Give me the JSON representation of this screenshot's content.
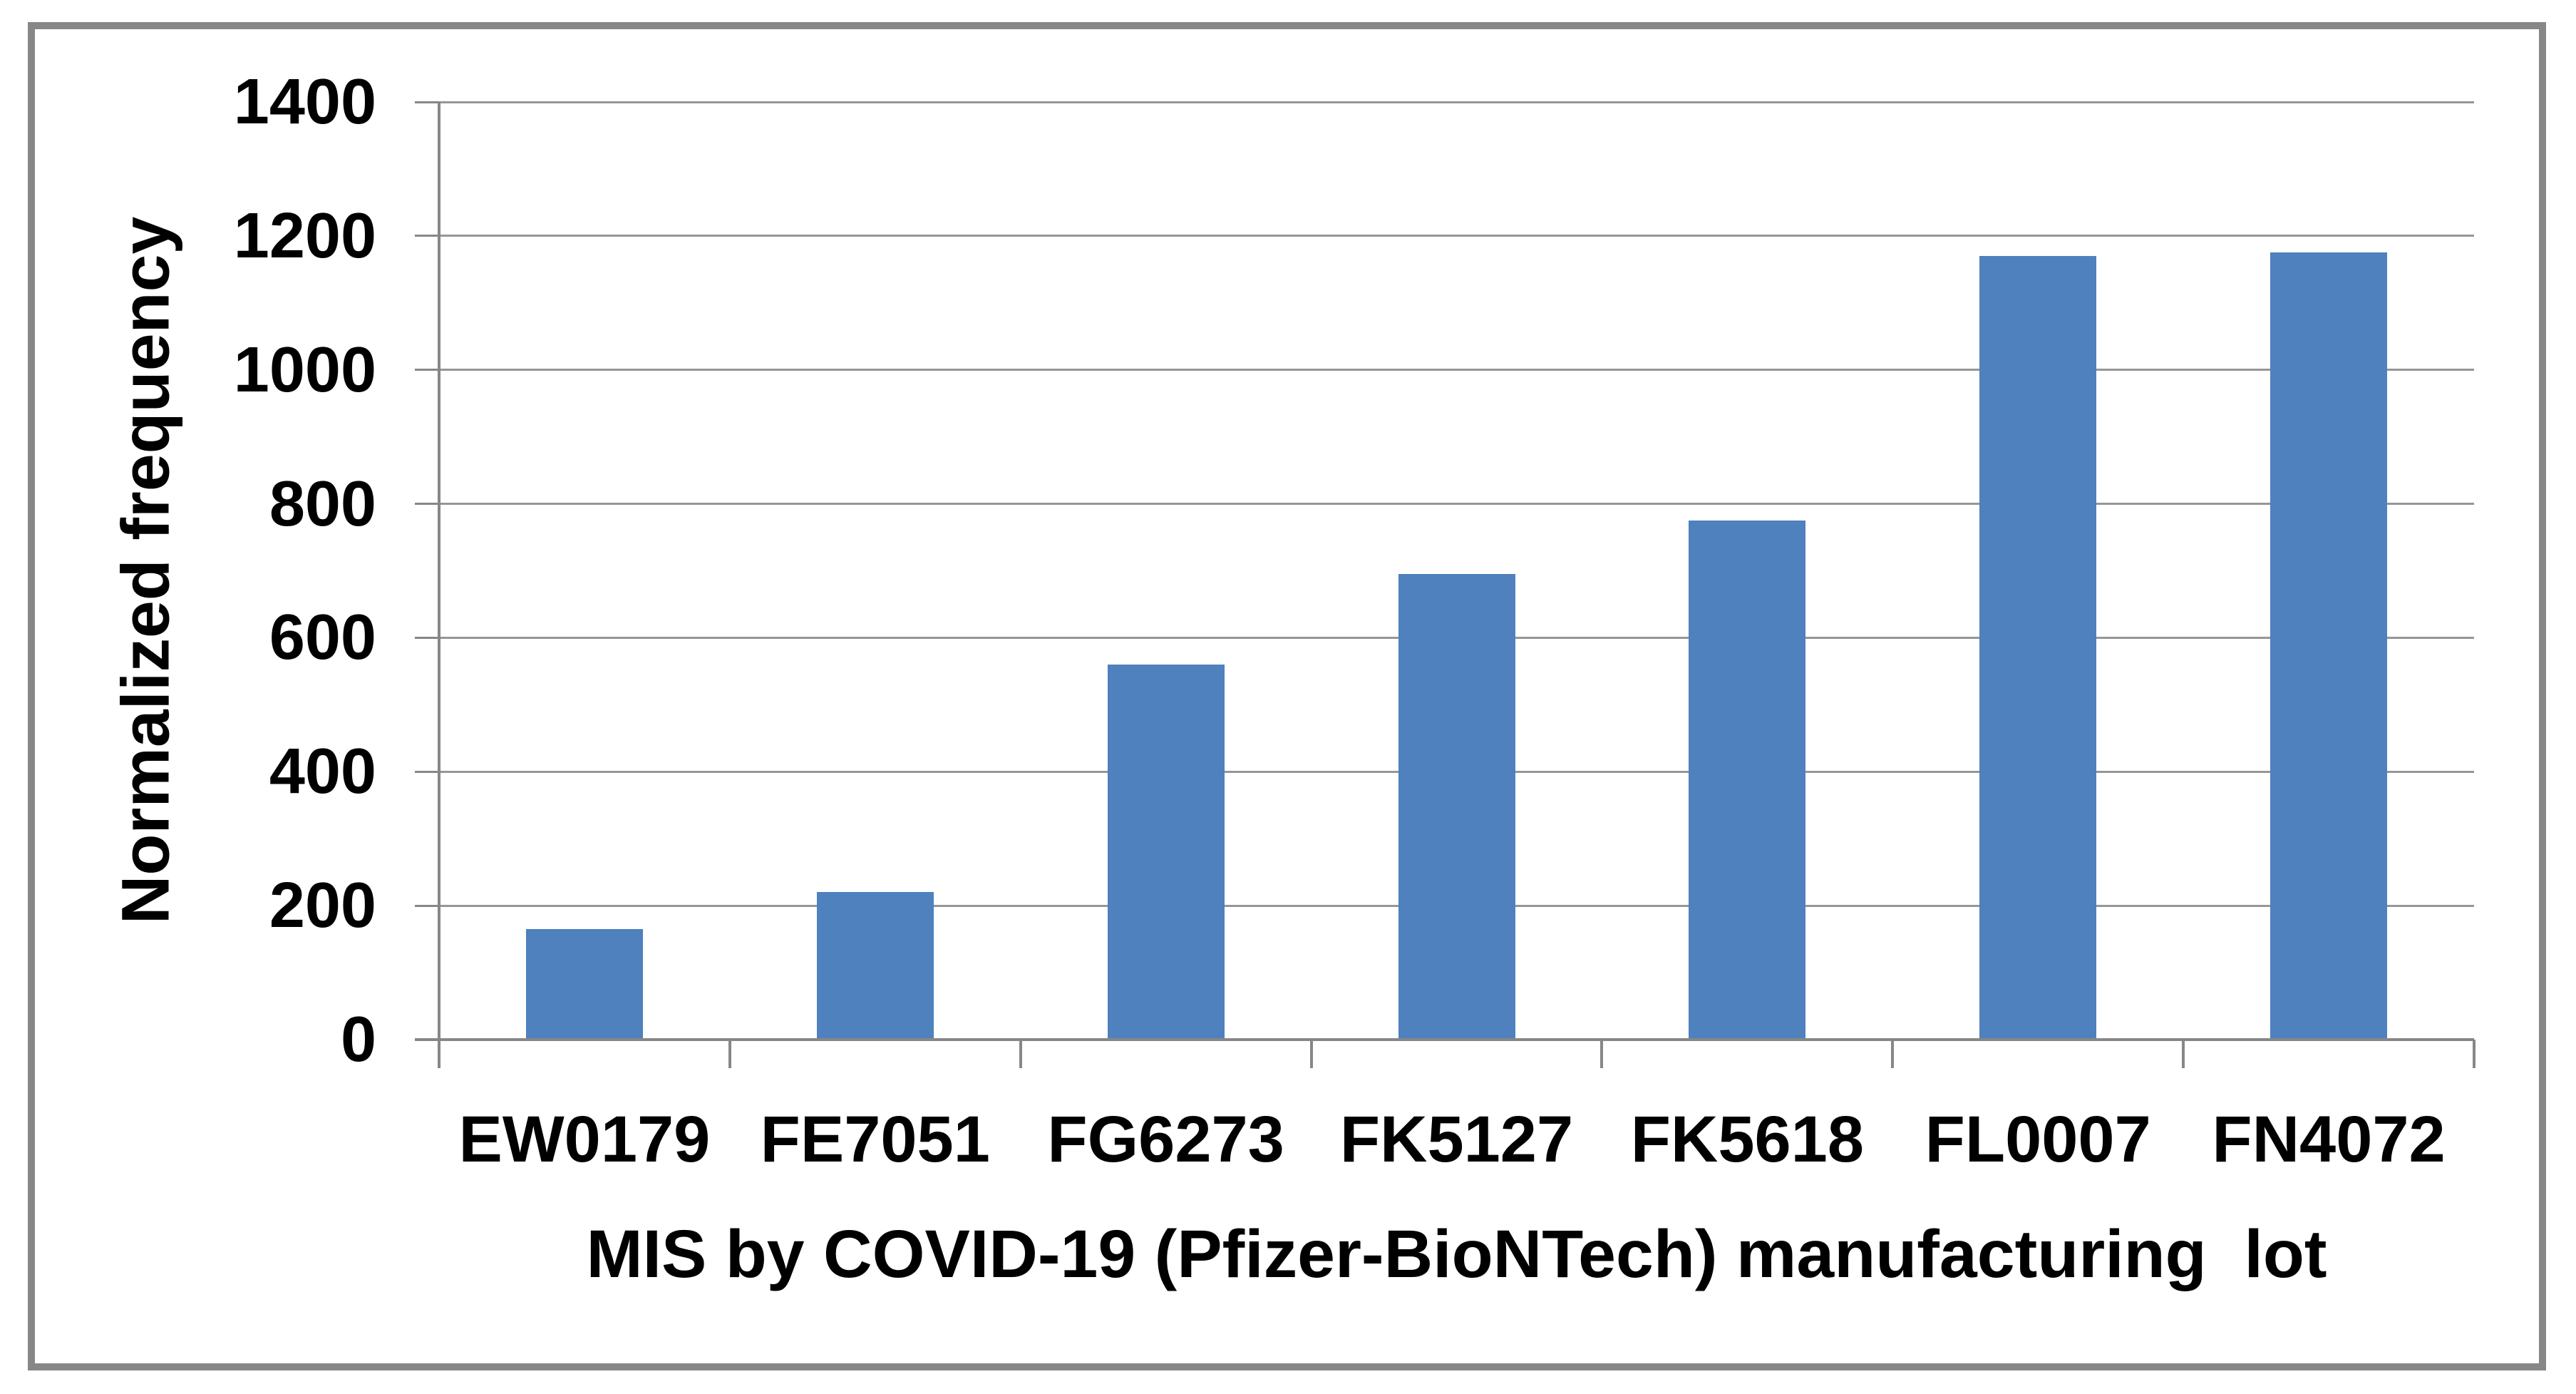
{
  "chart_data": {
    "type": "bar",
    "title": "",
    "categories": [
      "EW0179",
      "FE7051",
      "FG6273",
      "FK5127",
      "FK5618",
      "FL0007",
      "FN4072"
    ],
    "values": [
      165,
      220,
      560,
      695,
      775,
      1170,
      1175
    ],
    "xlabel": "MIS by COVID-19 (Pfizer-BioNTech) manufacturing  lot",
    "ylabel": "Normalized frequency",
    "ylim": [
      0,
      1400
    ],
    "yticks": [
      0,
      200,
      400,
      600,
      800,
      1000,
      1200,
      1400
    ],
    "grid": "horizontal",
    "legend": "none",
    "colors": {
      "bar": "#4E81BD",
      "gridline": "#969696",
      "axis": "#878787",
      "frame": "#878787",
      "background": "#FFFFFF",
      "text": "#000000"
    }
  }
}
